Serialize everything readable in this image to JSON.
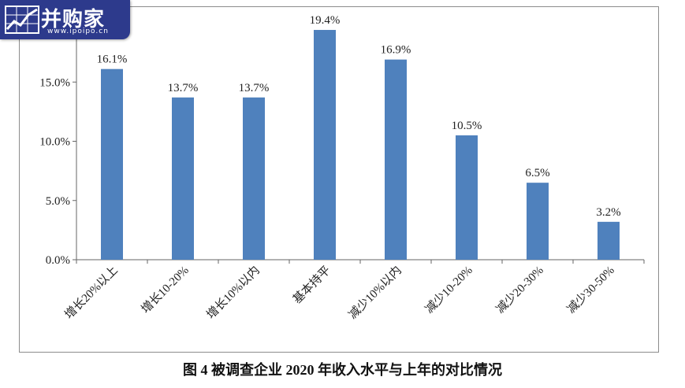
{
  "watermark": {
    "name": "并购家",
    "url": "www.ipoipo.cn"
  },
  "caption": "图 4  被调查企业 2020 年收入水平与上年的对比情况",
  "chart_data": {
    "type": "bar",
    "title": "",
    "xlabel": "",
    "ylabel": "",
    "categories": [
      "增长20%以上",
      "增长10-20%",
      "增长10%以内",
      "基本持平",
      "减少10%以内",
      "减少10-20%",
      "减少20-30%",
      "减少30-50%"
    ],
    "values": [
      16.1,
      13.7,
      13.7,
      19.4,
      16.9,
      10.5,
      6.5,
      3.2
    ],
    "data_labels": [
      "16.1%",
      "13.7%",
      "13.7%",
      "19.4%",
      "16.9%",
      "10.5%",
      "6.5%",
      "3.2%"
    ],
    "yticks": [
      0,
      5,
      10,
      15
    ],
    "ytick_labels": [
      "0.0%",
      "5.0%",
      "10.0%",
      "15.0%"
    ],
    "ylim": [
      0,
      20
    ],
    "grid": false,
    "legend": "none",
    "bar_color": "#4f81bd"
  }
}
